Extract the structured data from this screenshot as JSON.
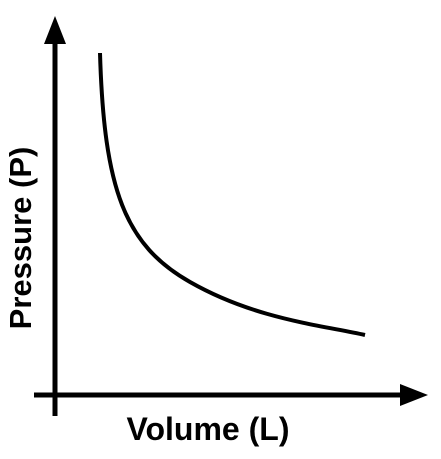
{
  "x_axis_label": "Volume (L)",
  "y_axis_label": "Pressure (P)"
}
